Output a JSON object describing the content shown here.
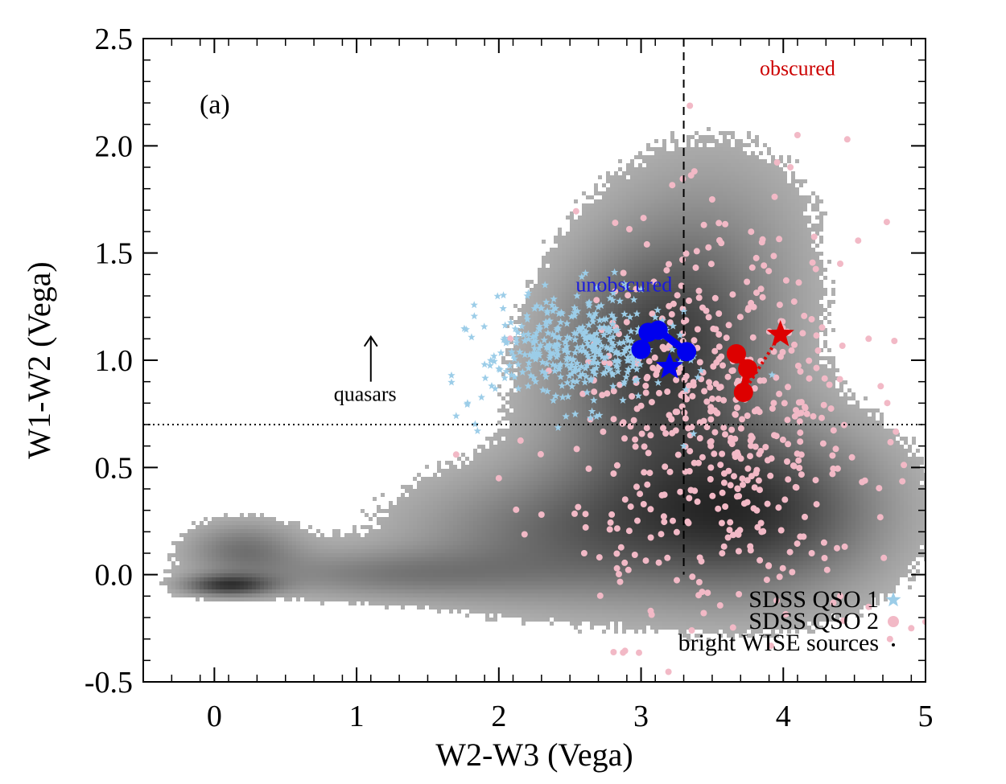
{
  "chart_data": {
    "type": "scatter",
    "panel_label": "(a)",
    "xlabel": "W2-W3 (Vega)",
    "ylabel": "W1-W2 (Vega)",
    "xlim": [
      -0.5,
      5
    ],
    "ylim": [
      -0.5,
      2.5
    ],
    "x_ticks": [
      {
        "value": 0,
        "label": "0"
      },
      {
        "value": 1,
        "label": "1"
      },
      {
        "value": 2,
        "label": "2"
      },
      {
        "value": 3,
        "label": "3"
      },
      {
        "value": 4,
        "label": "4"
      },
      {
        "value": 5,
        "label": "5"
      }
    ],
    "y_ticks": [
      {
        "value": -0.5,
        "label": "-0.5"
      },
      {
        "value": 0.0,
        "label": "0.0"
      },
      {
        "value": 0.5,
        "label": "0.5"
      },
      {
        "value": 1.0,
        "label": "1.0"
      },
      {
        "value": 1.5,
        "label": "1.5"
      },
      {
        "value": 2.0,
        "label": "2.0"
      },
      {
        "value": 2.5,
        "label": "2.5"
      }
    ],
    "reference_lines": [
      {
        "orientation": "vertical",
        "value": 3.3,
        "style": "dashed"
      },
      {
        "orientation": "horizontal",
        "value": 0.7,
        "style": "dotted"
      }
    ],
    "annotations": [
      {
        "text": "obscured",
        "x": 4.1,
        "y": 2.33,
        "color": "#cc0000"
      },
      {
        "text": "unobscured",
        "x": 2.88,
        "y": 1.32,
        "color": "#1a1adb"
      },
      {
        "text": "quasars",
        "x": 1.06,
        "y": 0.81,
        "color": "#000000",
        "arrow_from": [
          1.1,
          0.9
        ],
        "arrow_to": [
          1.1,
          1.11
        ]
      }
    ],
    "legend": {
      "position": "bottom-right",
      "entries": [
        {
          "label": "SDSS QSO 1",
          "marker": "star",
          "color": "#9ccde8"
        },
        {
          "label": "SDSS QSO 2",
          "marker": "circle",
          "color": "#f2b9c6"
        },
        {
          "label": "bright WISE sources",
          "marker": "dot",
          "color": "#000000"
        }
      ]
    },
    "density_blobs": [
      {
        "x": 0.1,
        "y": -0.05,
        "sx": 0.22,
        "sy": 0.035,
        "strength": 0.85
      },
      {
        "x": 0.2,
        "y": 0.12,
        "sx": 0.28,
        "sy": 0.09,
        "strength": 0.5
      },
      {
        "x": 1.2,
        "y": 0.0,
        "sx": 0.7,
        "sy": 0.08,
        "strength": 0.4
      },
      {
        "x": 2.5,
        "y": 0.18,
        "sx": 0.8,
        "sy": 0.22,
        "strength": 0.55
      },
      {
        "x": 3.9,
        "y": 0.3,
        "sx": 0.6,
        "sy": 0.28,
        "strength": 0.8
      },
      {
        "x": 3.1,
        "y": 0.75,
        "sx": 0.55,
        "sy": 0.4,
        "strength": 0.55
      },
      {
        "x": 3.2,
        "y": 1.15,
        "sx": 0.5,
        "sy": 0.3,
        "strength": 0.5
      },
      {
        "x": 3.5,
        "y": 1.6,
        "sx": 0.55,
        "sy": 0.35,
        "strength": 0.25
      }
    ],
    "series": [
      {
        "name": "SDSS QSO 1",
        "marker": "star",
        "color": "#9ccde8",
        "cluster": {
          "center": [
            2.55,
            1.05
          ],
          "spread": [
            0.32,
            0.13
          ],
          "count": 380
        },
        "points": [
          [
            1.7,
            0.74
          ],
          [
            1.78,
            0.8
          ],
          [
            1.85,
            0.67
          ],
          [
            1.95,
            0.88
          ],
          [
            2.0,
            0.96
          ],
          [
            1.9,
            0.98
          ],
          [
            2.05,
            1.08
          ],
          [
            2.2,
            1.3
          ],
          [
            2.55,
            1.3
          ],
          [
            2.8,
            1.28
          ],
          [
            3.0,
            1.33
          ],
          [
            3.1,
            1.2
          ],
          [
            3.22,
            1.05
          ],
          [
            3.35,
            1.0
          ],
          [
            3.4,
            0.92
          ],
          [
            3.3,
            0.6
          ]
        ]
      },
      {
        "name": "SDSS QSO 2",
        "marker": "circle",
        "color": "#f2b9c6",
        "cluster": {
          "center": [
            3.55,
            0.7
          ],
          "spread": [
            0.5,
            0.45
          ],
          "count": 520
        },
        "points": [
          [
            1.7,
            0.56
          ],
          [
            2.0,
            0.45
          ],
          [
            2.3,
            0.28
          ],
          [
            2.6,
            0.1
          ],
          [
            4.2,
            0.1
          ],
          [
            4.4,
            -0.1
          ],
          [
            4.6,
            -0.15
          ],
          [
            4.9,
            -0.25
          ],
          [
            5.0,
            -0.22
          ],
          [
            4.75,
            -0.3
          ],
          [
            4.05,
            1.9
          ],
          [
            3.5,
            1.75
          ],
          [
            4.45,
            2.03
          ],
          [
            4.1,
            2.05
          ],
          [
            3.85,
            1.55
          ],
          [
            4.6,
            1.1
          ],
          [
            4.4,
            1.45
          ]
        ]
      },
      {
        "name": "unobscured track",
        "marker": "circle",
        "color": "#0000ee",
        "points": [
          [
            3.0,
            1.05
          ],
          [
            3.05,
            1.13
          ],
          [
            3.12,
            1.14
          ],
          [
            3.32,
            1.04
          ]
        ],
        "end_star": [
          3.2,
          0.97
        ]
      },
      {
        "name": "obscured track",
        "marker": "circle",
        "color": "#dd0000",
        "points": [
          [
            3.67,
            1.03
          ],
          [
            3.75,
            0.96
          ],
          [
            3.72,
            0.85
          ]
        ],
        "end_star": [
          3.98,
          1.12
        ]
      }
    ]
  }
}
